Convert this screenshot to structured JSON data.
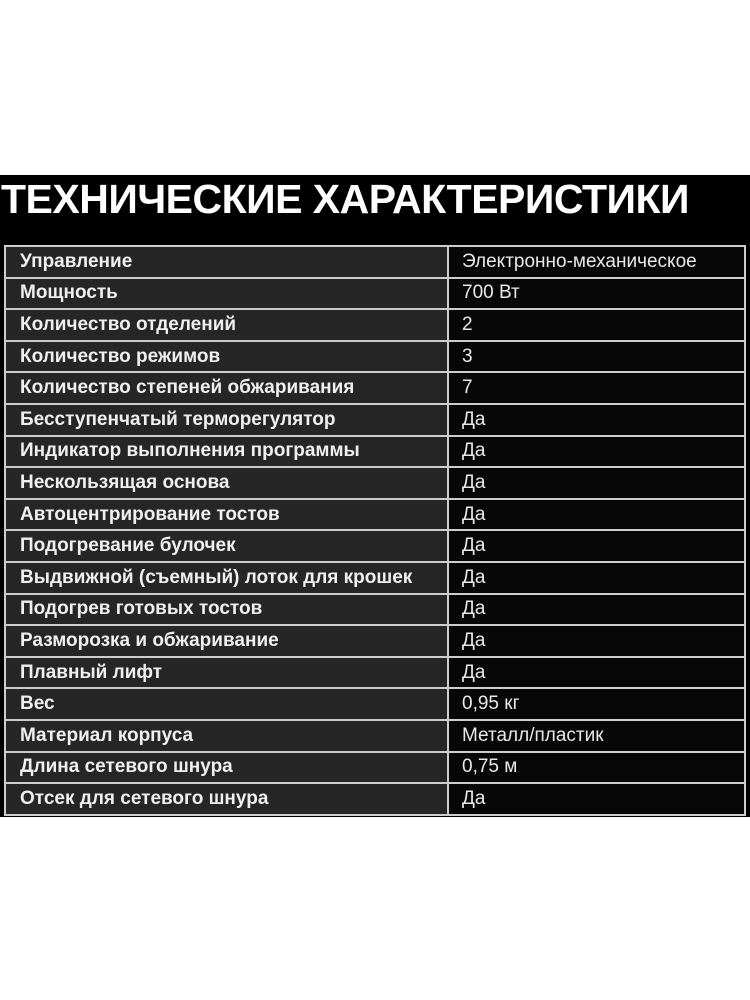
{
  "title": "ТЕХНИЧЕСКИЕ ХАРАКТЕРИСТИКИ",
  "table": {
    "rows": [
      {
        "label": "Управление",
        "value": "Электронно-механическое"
      },
      {
        "label": "Мощность",
        "value": "700 Вт"
      },
      {
        "label": "Количество отделений",
        "value": "2"
      },
      {
        "label": "Количество режимов",
        "value": "3"
      },
      {
        "label": "Количество степеней обжаривания",
        "value": "7"
      },
      {
        "label": "Бесступенчатый терморегулятор",
        "value": "Да"
      },
      {
        "label": "Индикатор выполнения программы",
        "value": "Да"
      },
      {
        "label": "Нескользящая основа",
        "value": "Да"
      },
      {
        "label": "Автоцентрирование тостов",
        "value": "Да"
      },
      {
        "label": "Подогревание булочек",
        "value": "Да"
      },
      {
        "label": "Выдвижной (съемный) лоток для крошек",
        "value": "Да"
      },
      {
        "label": "Подогрев готовых тостов",
        "value": "Да"
      },
      {
        "label": "Разморозка и обжаривание",
        "value": "Да"
      },
      {
        "label": "Плавный лифт",
        "value": "Да"
      },
      {
        "label": "Вес",
        "value": "0,95 кг"
      },
      {
        "label": "Материал корпуса",
        "value": "Металл/пластик"
      },
      {
        "label": "Длина сетевого шнура",
        "value": "0,75 м"
      },
      {
        "label": "Отсек для сетевого шнура",
        "value": "Да"
      }
    ]
  },
  "colors": {
    "page_background": "#ffffff",
    "band_background": "#000000",
    "label_cell_background": "#262626",
    "value_cell_background": "#070707",
    "border": "#cdcdcd",
    "title_text": "#ffffff",
    "cell_text": "#efefef"
  }
}
